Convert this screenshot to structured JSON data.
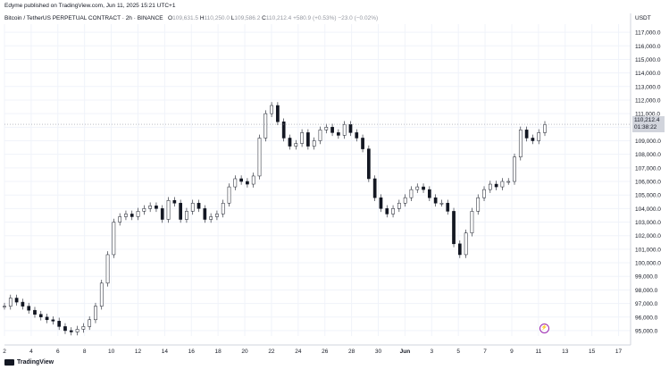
{
  "header": {
    "published_by": "Edyme published on TradingView.com, Jun 11, 2025 15:21 UTC+1"
  },
  "legend": {
    "symbol": "Bitcoin / TetherUS PERPETUAL CONTRACT · 2h · BINANCE",
    "o_label": "O",
    "o_value": "109,631.5",
    "h_label": "H",
    "h_value": "110,250.0",
    "l_label": "L",
    "l_value": "109,586.2",
    "c_label": "C",
    "c_value": "110,212.4",
    "change": "+580.9 (+0.53%)",
    "volume_change": "−23.0 (−0.02%)"
  },
  "axis": {
    "currency": "USDT"
  },
  "price_tag": {
    "price": "110,212.4",
    "countdown": "01:38:22"
  },
  "footer": {
    "brand": "TradingView"
  },
  "colors": {
    "up": "#ffffff",
    "down": "#131722",
    "grid": "#f0f3fa",
    "axis_text": "#131722",
    "flash_icon": "#9c27b0"
  },
  "icons": {
    "flash": "lightning-icon",
    "logo": "tradingview-logo-icon"
  },
  "chart_data": {
    "type": "candlestick",
    "y_ticks": [
      "117,000.0",
      "116,000.0",
      "115,000.0",
      "114,000.0",
      "113,000.0",
      "112,000.0",
      "111,000.0",
      "110,000.0",
      "109,000.0",
      "108,000.0",
      "107,000.0",
      "106,000.0",
      "105,000.0",
      "104,000.0",
      "103,000.0",
      "102,000.0",
      "101,000.0",
      "100,000.0",
      "99,000.0",
      "98,000.0",
      "97,000.0",
      "96,000.0",
      "95,000.0"
    ],
    "x_ticks": [
      "2",
      "4",
      "6",
      "8",
      "10",
      "12",
      "14",
      "16",
      "18",
      "20",
      "22",
      "24",
      "26",
      "28",
      "30",
      "Jun",
      "3",
      "5",
      "7",
      "9",
      "11",
      "13",
      "15",
      "17"
    ],
    "ylim": [
      94600,
      117600
    ],
    "close_path": [
      [
        0,
        96.8
      ],
      [
        0.5,
        97.4
      ],
      [
        1,
        97.1
      ],
      [
        1.5,
        96.8
      ],
      [
        2,
        96.5
      ],
      [
        2.5,
        96.2
      ],
      [
        3,
        96.0
      ],
      [
        3.5,
        95.8
      ],
      [
        4,
        95.7
      ],
      [
        4.5,
        95.3
      ],
      [
        5,
        95.0
      ],
      [
        5.5,
        94.9
      ],
      [
        6,
        95.1
      ],
      [
        6.5,
        95.3
      ],
      [
        7,
        95.8
      ],
      [
        7.5,
        96.8
      ],
      [
        8,
        98.5
      ],
      [
        8.5,
        100.6
      ],
      [
        9,
        103.0
      ],
      [
        9.5,
        103.4
      ],
      [
        10,
        103.6
      ],
      [
        10.5,
        103.4
      ],
      [
        11,
        103.8
      ],
      [
        11.5,
        104.0
      ],
      [
        12,
        104.2
      ],
      [
        12.5,
        104.0
      ],
      [
        13,
        103.2
      ],
      [
        13.5,
        104.6
      ],
      [
        14,
        104.4
      ],
      [
        14.5,
        103.2
      ],
      [
        15,
        103.8
      ],
      [
        15.5,
        104.4
      ],
      [
        16,
        104.0
      ],
      [
        16.5,
        103.2
      ],
      [
        17,
        103.4
      ],
      [
        17.5,
        103.6
      ],
      [
        18,
        104.4
      ],
      [
        18.5,
        105.6
      ],
      [
        19,
        106.2
      ],
      [
        19.5,
        106.0
      ],
      [
        20,
        105.8
      ],
      [
        20.5,
        106.4
      ],
      [
        21,
        109.2
      ],
      [
        21.5,
        111.0
      ],
      [
        22,
        111.6
      ],
      [
        22.5,
        110.4
      ],
      [
        23,
        109.2
      ],
      [
        23.5,
        108.6
      ],
      [
        24,
        108.8
      ],
      [
        24.5,
        109.6
      ],
      [
        25,
        108.6
      ],
      [
        25.5,
        109.0
      ],
      [
        26,
        109.8
      ],
      [
        26.5,
        110.0
      ],
      [
        27,
        109.6
      ],
      [
        27.5,
        109.4
      ],
      [
        28,
        110.2
      ],
      [
        28.5,
        109.6
      ],
      [
        29,
        109.2
      ],
      [
        29.5,
        108.4
      ],
      [
        30,
        106.2
      ],
      [
        30.5,
        104.8
      ],
      [
        31,
        104.0
      ],
      [
        31.5,
        103.6
      ],
      [
        32,
        104.0
      ],
      [
        32.5,
        104.4
      ],
      [
        33,
        104.8
      ],
      [
        33.5,
        105.4
      ],
      [
        34,
        105.6
      ],
      [
        34.5,
        105.4
      ],
      [
        35,
        104.8
      ],
      [
        35.5,
        104.4
      ],
      [
        36,
        104.4
      ],
      [
        36.5,
        103.8
      ],
      [
        37,
        101.4
      ],
      [
        37.5,
        100.6
      ],
      [
        38,
        102.2
      ],
      [
        38.5,
        103.8
      ],
      [
        39,
        104.8
      ],
      [
        39.5,
        105.4
      ],
      [
        40,
        105.8
      ],
      [
        40.5,
        105.6
      ],
      [
        41,
        106.0
      ],
      [
        41.5,
        106.0
      ],
      [
        42,
        107.8
      ],
      [
        42.5,
        109.8
      ],
      [
        43,
        109.2
      ],
      [
        43.5,
        109.0
      ],
      [
        44,
        109.6
      ],
      [
        44.5,
        110.2
      ]
    ]
  }
}
